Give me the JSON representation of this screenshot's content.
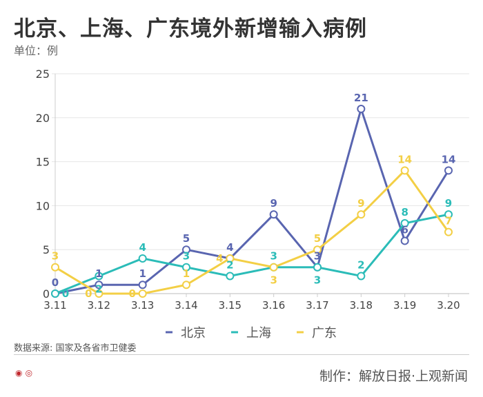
{
  "chart_data": {
    "type": "line",
    "title": "北京、上海、广东境外新增输入病例",
    "ylabel": "单位：例",
    "categories": [
      "3.11",
      "3.12",
      "3.13",
      "3.14",
      "3.15",
      "3.16",
      "3.17",
      "3.18",
      "3.19",
      "3.20"
    ],
    "ylim": [
      0,
      25
    ],
    "yticks": [
      0,
      5,
      10,
      15,
      20,
      25
    ],
    "grid": true,
    "legend": "bottom",
    "series": [
      {
        "name": "北京",
        "color": "#5965b0",
        "values": [
          0,
          1,
          1,
          5,
          4,
          9,
          3,
          21,
          6,
          14
        ]
      },
      {
        "name": "上海",
        "color": "#2bbcb8",
        "values": [
          0,
          2,
          4,
          3,
          2,
          3,
          3,
          2,
          8,
          9
        ]
      },
      {
        "name": "广东",
        "color": "#f3cf45",
        "values": [
          3,
          0,
          0,
          1,
          4,
          3,
          5,
          9,
          14,
          7
        ]
      }
    ]
  },
  "footer": {
    "source": "数据来源: 国家及各省市卫健委",
    "credit": "制作：解放日报·上观新闻",
    "logo_text": "解放日报 上观"
  }
}
